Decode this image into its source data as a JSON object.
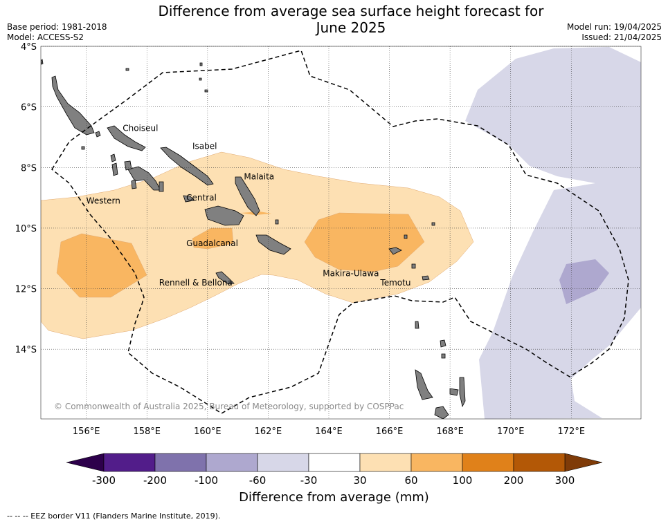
{
  "title": "Difference from average sea surface height forecast for\nJune 2025",
  "meta": {
    "base_period": "Base period: 1981-2018",
    "model": "Model: ACCESS-S2",
    "model_run": "Model run: 19/04/2025",
    "issued": "Issued: 21/04/2025"
  },
  "map": {
    "lon_range": [
      154.5,
      174.3
    ],
    "lat_range": [
      -4,
      -16.3
    ],
    "lat_ticks": [
      {
        "value": -4,
        "label": "4°S"
      },
      {
        "value": -6,
        "label": "6°S"
      },
      {
        "value": -8,
        "label": "8°S"
      },
      {
        "value": -10,
        "label": "10°S"
      },
      {
        "value": -12,
        "label": "12°S"
      },
      {
        "value": -14,
        "label": "14°S"
      }
    ],
    "lon_ticks": [
      {
        "value": 156,
        "label": "156°E"
      },
      {
        "value": 158,
        "label": "158°E"
      },
      {
        "value": 160,
        "label": "160°E"
      },
      {
        "value": 162,
        "label": "162°E"
      },
      {
        "value": 164,
        "label": "164°E"
      },
      {
        "value": 166,
        "label": "166°E"
      },
      {
        "value": 168,
        "label": "168°E"
      },
      {
        "value": 170,
        "label": "170°E"
      },
      {
        "value": 172,
        "label": "172°E"
      }
    ],
    "regions": [
      {
        "name": "Choiseul",
        "lon": 157.2,
        "lat": -6.7
      },
      {
        "name": "Isabel",
        "lon": 159.5,
        "lat": -7.3
      },
      {
        "name": "Malaita",
        "lon": 161.2,
        "lat": -8.3
      },
      {
        "name": "Western",
        "lon": 156.0,
        "lat": -9.1
      },
      {
        "name": "Central",
        "lon": 159.3,
        "lat": -9.0
      },
      {
        "name": "Guadalcanal",
        "lon": 159.3,
        "lat": -10.5
      },
      {
        "name": "Makira-Ulawa",
        "lon": 163.8,
        "lat": -11.5
      },
      {
        "name": "Rennell & Bellona",
        "lon": 158.4,
        "lat": -11.8
      },
      {
        "name": "Temotu",
        "lon": 165.7,
        "lat": -11.8
      }
    ],
    "grid": true,
    "copyright": "© Commonwealth of Australia 2025, Bureau of Meteorology, supported by COSPPac"
  },
  "colorbar": {
    "title": "Difference from average (mm)",
    "levels": [
      "-300",
      "-200",
      "-100",
      "-60",
      "-30",
      "30",
      "60",
      "100",
      "200",
      "300"
    ],
    "colors": [
      "#521d8a",
      "#7f72ac",
      "#aea8cf",
      "#d7d7e8",
      "#ffffff",
      "#fde0b3",
      "#f9b661",
      "#e0811a",
      "#b35806"
    ],
    "under_color": "#2d004b",
    "over_color": "#7f3b08"
  },
  "contour_colors": {
    "pos_30_60": "#fde0b3",
    "pos_60_100": "#f9b661",
    "neg_30_60": "#d7d7e8",
    "neg_60_100": "#aea8cf",
    "land": "#808080"
  },
  "footnote": "--  --  -- EEZ border V11 (Flanders Marine Institute, 2019)."
}
